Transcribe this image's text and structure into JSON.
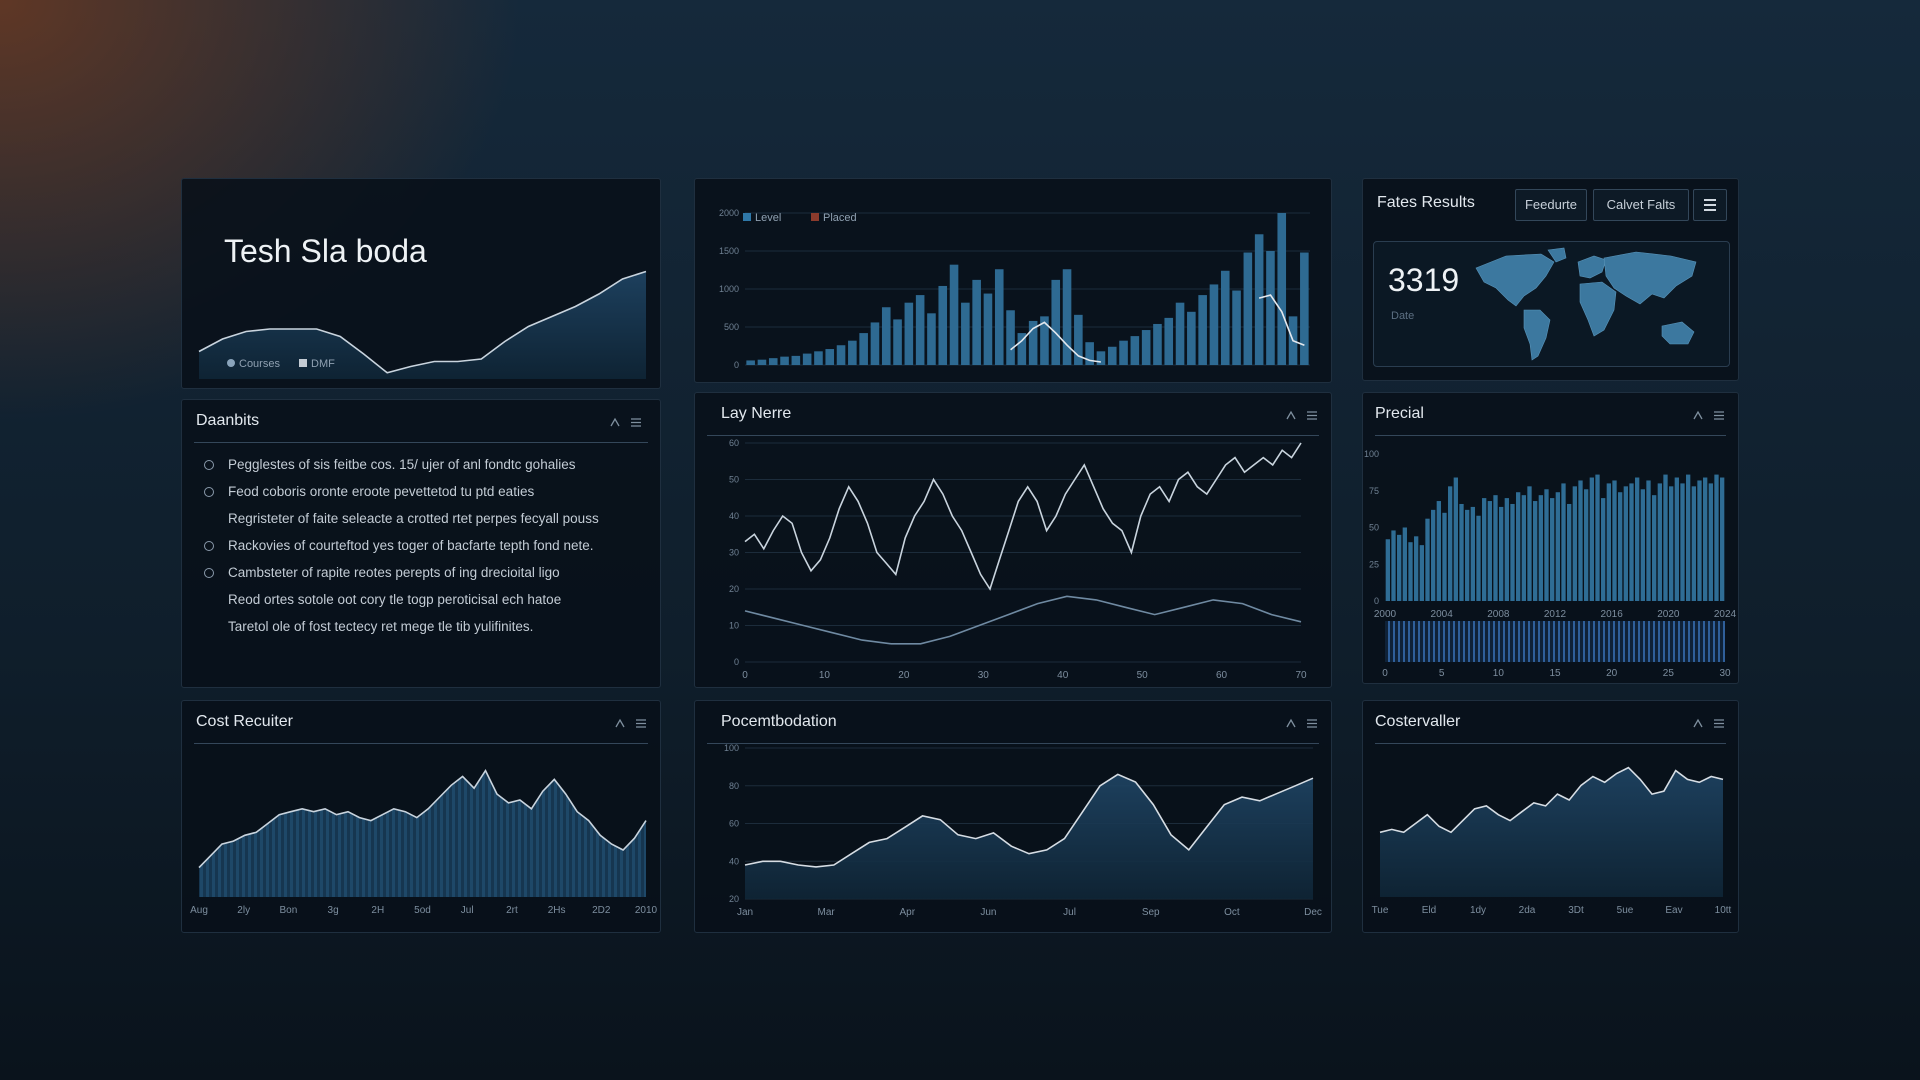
{
  "panels": [
    {
      "title": "Tesh Sla boda",
      "chart": {
        "type": "area",
        "ylim": [
          0,
          100
        ],
        "series": [
          {
            "color": "#c9d4de",
            "values": [
              22,
              32,
              38,
              40,
              40,
              40,
              34,
              20,
              5,
              10,
              14,
              14,
              16,
              30,
              42,
              50,
              58,
              68,
              80,
              86
            ]
          }
        ],
        "legend": [
          {
            "label": "Courses",
            "color": "#8aa4bb"
          },
          {
            "label": "DMF",
            "color": "#c4ccd4"
          }
        ]
      }
    },
    {
      "chart": {
        "type": "bar",
        "ylim": [
          0,
          2000
        ],
        "yticks": [
          0,
          500,
          1000,
          1500,
          2000
        ],
        "grid": true,
        "series": [
          {
            "type": "bar",
            "color": "#2e6a92",
            "values": [
              60,
              70,
              90,
              110,
              120,
              150,
              180,
              210,
              260,
              320,
              420,
              560,
              760,
              600,
              820,
              920,
              680,
              1040,
              1320,
              820,
              1120,
              940,
              1260,
              720,
              420,
              580,
              640,
              1120,
              1260,
              660,
              300,
              180,
              240,
              320,
              380,
              460,
              540,
              620,
              820,
              700,
              920,
              1060,
              1240,
              980,
              1480,
              1720,
              1500,
              2000,
              640,
              1480
            ]
          },
          {
            "type": "line",
            "color": "#e3e8ee",
            "values": [
              null,
              null,
              null,
              null,
              null,
              null,
              null,
              null,
              null,
              null,
              null,
              null,
              null,
              null,
              null,
              null,
              null,
              null,
              null,
              null,
              null,
              null,
              null,
              200,
              320,
              480,
              560,
              420,
              260,
              120,
              60,
              40,
              null,
              null,
              null,
              null,
              null,
              null,
              null,
              null,
              null,
              null,
              null,
              null,
              null,
              880,
              920,
              700,
              320,
              260
            ]
          }
        ],
        "legend": [
          {
            "label": "Level",
            "color": "#2f78a8"
          },
          {
            "label": "Placed",
            "color": "#8c3b2c"
          }
        ]
      }
    },
    {
      "title": "Fates Results",
      "buttons": [
        "Feedurte",
        "Calvet Falts"
      ],
      "kpi": {
        "value": 3319,
        "label": "Date"
      }
    },
    {
      "title": "Daanbits",
      "items": [
        {
          "text": "Pegglestes of sis feitbe cos. 15/ ujer of anl fondtc gohalies",
          "bullet": true
        },
        {
          "text": "Feod coboris oronte eroote pevettetod tu ptd eaties",
          "bullet": true
        },
        {
          "text": "Regristeter of faite seleacte a crotted rtet perpes fecyall pouss",
          "bullet": false
        },
        {
          "text": "Rackovies of courteftod yes toger of bacfarte tepth fond nete.",
          "bullet": true
        },
        {
          "text": "Cambsteter of rapite reotes perepts of ing drecioital ligo",
          "bullet": true
        },
        {
          "text": "Reod ortes sotole oot cory tle togp peroticisal ech hatoe",
          "bullet": false
        },
        {
          "text": "Taretol ole of fost tectecy ret mege tle tib yulifinites.",
          "bullet": false
        }
      ]
    },
    {
      "title": "Lay Nerre",
      "chart": {
        "type": "line",
        "ylim": [
          0,
          60
        ],
        "yticks": [
          0,
          10,
          20,
          30,
          40,
          50,
          60
        ],
        "grid": true,
        "xlabels": [
          "0",
          "10",
          "20",
          "30",
          "40",
          "50",
          "60",
          "70"
        ],
        "series": [
          {
            "color": "#c9d4de",
            "values": [
              33,
              35,
              31,
              36,
              40,
              38,
              30,
              25,
              28,
              34,
              42,
              48,
              44,
              38,
              30,
              27,
              24,
              34,
              40,
              44,
              50,
              46,
              40,
              36,
              30,
              24,
              20,
              28,
              36,
              44,
              48,
              44,
              36,
              40,
              46,
              50,
              54,
              48,
              42,
              38,
              36,
              30,
              40,
              46,
              48,
              44,
              50,
              52,
              48,
              46,
              50,
              54,
              56,
              52,
              54,
              56,
              54,
              58,
              56,
              60
            ]
          },
          {
            "color": "#6f8aa2",
            "values": [
              14,
              12,
              10,
              8,
              6,
              5,
              5,
              7,
              10,
              13,
              16,
              18,
              17,
              15,
              13,
              15,
              17,
              16,
              13,
              11
            ]
          }
        ]
      }
    },
    {
      "title": "Precial",
      "chart": {
        "type": "bar",
        "ylim": [
          0,
          100
        ],
        "yticks": [
          0,
          25,
          50,
          75,
          100
        ],
        "xlabels": [
          "2000",
          "2004",
          "2008",
          "2012",
          "2016",
          "2020",
          "2024"
        ],
        "xlabels2": [
          "0",
          "5",
          "10",
          "15",
          "20",
          "25",
          "30"
        ],
        "series": [
          {
            "type": "bar",
            "color": "#2f6d95",
            "values": [
              42,
              48,
              45,
              50,
              40,
              44,
              38,
              56,
              62,
              68,
              60,
              78,
              84,
              66,
              62,
              64,
              58,
              70,
              68,
              72,
              64,
              70,
              66,
              74,
              72,
              78,
              68,
              72,
              76,
              70,
              74,
              80,
              66,
              78,
              82,
              76,
              84,
              86,
              70,
              80,
              82,
              74,
              78,
              80,
              84,
              76,
              82,
              72,
              80,
              86,
              78,
              84,
              80,
              86,
              78,
              82,
              84,
              80,
              86,
              84
            ]
          }
        ]
      }
    },
    {
      "title": "Cost Recuiter",
      "chart": {
        "type": "area",
        "ylim": [
          0,
          100
        ],
        "xlabels": [
          "Aug",
          "2ly",
          "Bon",
          "3g",
          "2H",
          "5od",
          "Jul",
          "2rt",
          "2Hs",
          "2D2",
          "2010"
        ],
        "series": [
          {
            "color": "#c9d4de",
            "values": [
              20,
              28,
              36,
              38,
              42,
              44,
              50,
              56,
              58,
              60,
              58,
              60,
              56,
              58,
              54,
              52,
              56,
              60,
              58,
              54,
              60,
              68,
              76,
              82,
              74,
              86,
              70,
              64,
              66,
              60,
              72,
              80,
              70,
              58,
              52,
              42,
              36,
              32,
              40,
              52
            ]
          }
        ]
      }
    },
    {
      "title": "Pocemtbodation",
      "chart": {
        "type": "area",
        "ylim": [
          20,
          100
        ],
        "yticks": [
          20,
          40,
          60,
          80,
          100
        ],
        "grid": true,
        "xlabels": [
          "Jan",
          "Mar",
          "Apr",
          "Jun",
          "Jul",
          "Sep",
          "Oct",
          "Dec"
        ],
        "series": [
          {
            "color": "#d6dde4",
            "values": [
              38,
              40,
              40,
              38,
              37,
              38,
              44,
              50,
              52,
              58,
              64,
              62,
              54,
              52,
              55,
              48,
              44,
              46,
              52,
              66,
              80,
              86,
              82,
              70,
              54,
              46,
              58,
              70,
              74,
              72,
              76,
              80,
              84
            ]
          }
        ]
      }
    },
    {
      "title": "Costervaller",
      "chart": {
        "type": "area",
        "ylim": [
          0,
          100
        ],
        "xlabels": [
          "Tue",
          "Eld",
          "1dy",
          "2da",
          "3Dt",
          "5ue",
          "Eav",
          "10tt"
        ],
        "series": [
          {
            "color": "#d6dde4",
            "values": [
              44,
              46,
              44,
              50,
              56,
              48,
              44,
              52,
              60,
              62,
              56,
              52,
              58,
              64,
              62,
              70,
              66,
              76,
              82,
              78,
              84,
              88,
              80,
              70,
              72,
              86,
              80,
              78,
              82,
              80
            ]
          }
        ]
      }
    }
  ]
}
